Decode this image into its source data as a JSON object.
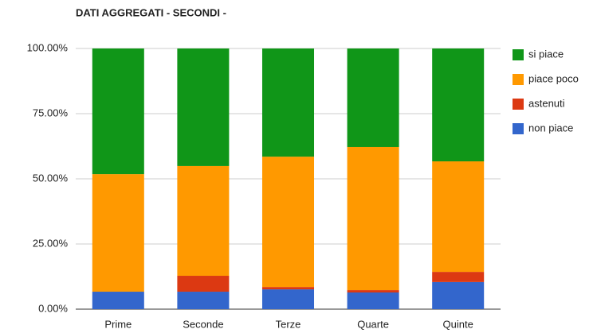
{
  "chart_data": {
    "type": "stacked_bar",
    "title": "DATI AGGREGATI - SECONDI -",
    "categories": [
      "Prime",
      "Seconde",
      "Terze",
      "Quarte",
      "Quinte"
    ],
    "series": [
      {
        "name": "non piace",
        "color": "#3366cc",
        "values": [
          6.7,
          6.7,
          7.6,
          6.4,
          10.4
        ]
      },
      {
        "name": "astenuti",
        "color": "#dc3912",
        "values": [
          0,
          6.1,
          0.9,
          0.9,
          3.9
        ]
      },
      {
        "name": "piace poco",
        "color": "#ff9900",
        "values": [
          45.1,
          42.1,
          50,
          54.9,
          42.4
        ]
      },
      {
        "name": "si piace",
        "color": "#109618",
        "values": [
          48.2,
          45.1,
          41.5,
          37.8,
          43.3
        ]
      }
    ],
    "ylim": [
      0,
      100
    ],
    "yticks": [
      {
        "value": 0,
        "label": "0.00%"
      },
      {
        "value": 25,
        "label": "25.00%"
      },
      {
        "value": 50,
        "label": "50.00%"
      },
      {
        "value": 75,
        "label": "75.00%"
      },
      {
        "value": 100,
        "label": "100.00%"
      }
    ],
    "grid": true,
    "legend": "right"
  }
}
